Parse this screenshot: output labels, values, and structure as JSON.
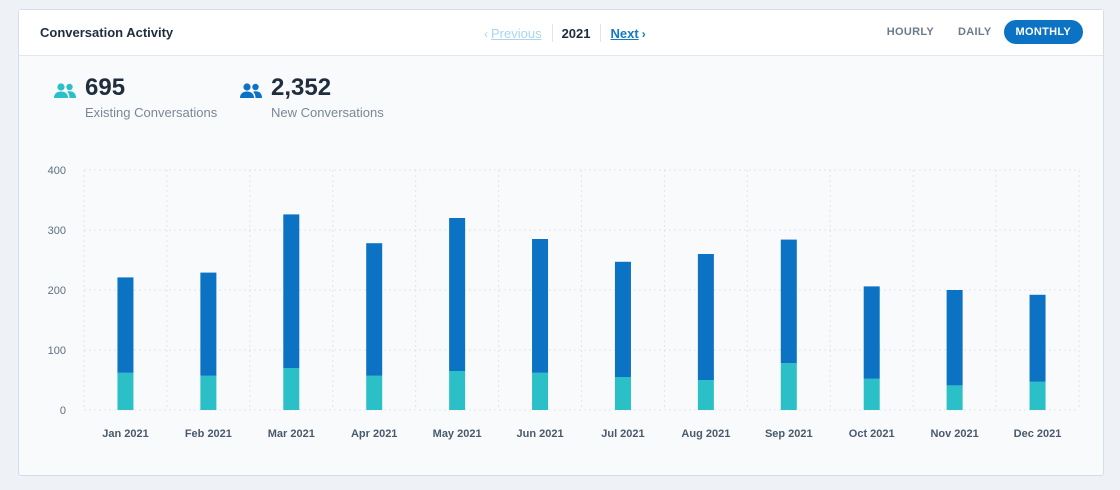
{
  "header": {
    "title": "Conversation Activity",
    "pager": {
      "prev_label": "Previous",
      "year": "2021",
      "next_label": "Next"
    },
    "granularity": [
      {
        "label": "HOURLY",
        "active": false
      },
      {
        "label": "DAILY",
        "active": false
      },
      {
        "label": "MONTHLY",
        "active": true
      }
    ]
  },
  "stats": {
    "existing": {
      "value": "695",
      "label": "Existing Conversations",
      "icon": "users-icon",
      "color": "#2bc0c8"
    },
    "new": {
      "value": "2,352",
      "label": "New Conversations",
      "icon": "users-icon",
      "color": "#0b72c4"
    }
  },
  "chart_data": {
    "type": "bar",
    "stacked": true,
    "categories": [
      "Jan 2021",
      "Feb 2021",
      "Mar 2021",
      "Apr 2021",
      "May 2021",
      "Jun 2021",
      "Jul 2021",
      "Aug 2021",
      "Sep 2021",
      "Oct 2021",
      "Nov 2021",
      "Dec 2021"
    ],
    "series": [
      {
        "name": "Existing Conversations",
        "color": "#2bc0c8",
        "values": [
          62,
          57,
          70,
          57,
          65,
          62,
          55,
          50,
          78,
          52,
          41,
          47
        ]
      },
      {
        "name": "New Conversations",
        "color": "#0b72c4",
        "values": [
          159,
          172,
          256,
          221,
          255,
          223,
          192,
          210,
          206,
          154,
          159,
          145
        ]
      }
    ],
    "yticks": [
      0,
      100,
      200,
      300,
      400
    ],
    "ylim": [
      0,
      400
    ],
    "grid": true
  }
}
